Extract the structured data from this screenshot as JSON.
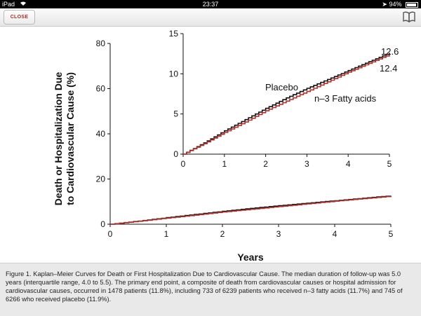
{
  "status_bar": {
    "device": "iPad",
    "time": "23:37",
    "battery": "94%",
    "battery_level": 0.94
  },
  "toolbar": {
    "close_label": "CLOSE",
    "icons": {
      "close": "close-button",
      "book": "book-icon"
    }
  },
  "chart_data": [
    {
      "type": "line",
      "title": "",
      "xlabel": "Years",
      "ylabel": "Death or Hospitalization Due to Cardiovascular Cause (%)",
      "xlim": [
        0,
        5
      ],
      "ylim": [
        0,
        80
      ],
      "x_ticks": [
        "0",
        "1",
        "2",
        "3",
        "4",
        "5"
      ],
      "y_ticks": [
        "0",
        "20",
        "40",
        "60",
        "80"
      ],
      "series": [
        {
          "color": "#111111",
          "x": [
            0,
            0.5,
            1,
            1.5,
            2,
            2.5,
            3,
            3.5,
            4,
            4.5,
            5
          ],
          "values": [
            0,
            1.4,
            2.9,
            4.3,
            5.7,
            7.0,
            8.2,
            9.3,
            10.4,
            11.5,
            12.6
          ]
        },
        {
          "color": "#b3302a",
          "x": [
            0,
            0.5,
            1,
            1.5,
            2,
            2.5,
            3,
            3.5,
            4,
            4.5,
            5
          ],
          "values": [
            0,
            1.3,
            2.7,
            4.0,
            5.4,
            6.6,
            7.8,
            9.0,
            10.2,
            11.3,
            12.4
          ]
        }
      ]
    },
    {
      "type": "line",
      "title": "",
      "xlim": [
        0,
        5
      ],
      "ylim": [
        0,
        15
      ],
      "x_ticks": [
        "0",
        "1",
        "2",
        "3",
        "4",
        "5"
      ],
      "y_ticks": [
        "0",
        "5",
        "10",
        "15"
      ],
      "series": [
        {
          "name": "Placebo",
          "end_label": "12.6",
          "color": "#111111",
          "x": [
            0,
            0.5,
            1,
            1.5,
            2,
            2.5,
            3,
            3.5,
            4,
            4.5,
            5
          ],
          "values": [
            0,
            1.4,
            2.9,
            4.3,
            5.7,
            7.0,
            8.2,
            9.3,
            10.4,
            11.5,
            12.6
          ]
        },
        {
          "name": "n–3 Fatty acids",
          "end_label": "12.4",
          "color": "#b3302a",
          "x": [
            0,
            0.5,
            1,
            1.5,
            2,
            2.5,
            3,
            3.5,
            4,
            4.5,
            5
          ],
          "values": [
            0,
            1.3,
            2.7,
            4.0,
            5.4,
            6.6,
            7.8,
            9.0,
            10.2,
            11.3,
            12.4
          ]
        }
      ]
    }
  ],
  "caption": "Figure 1. Kaplan–Meier Curves for Death or First Hospitalization Due to Cardiovascular Cause. The median duration of follow-up was 5.0 years (interquartile range, 4.0 to 5.5). The primary end point, a composite of death from cardiovascular causes or hospital admission for cardiovascular causes, occurred in 1478 patients (11.8%), including 733 of 6239 patients who received n–3 fatty acids (11.7%) and 745 of 6266 who received placebo (11.9%)."
}
